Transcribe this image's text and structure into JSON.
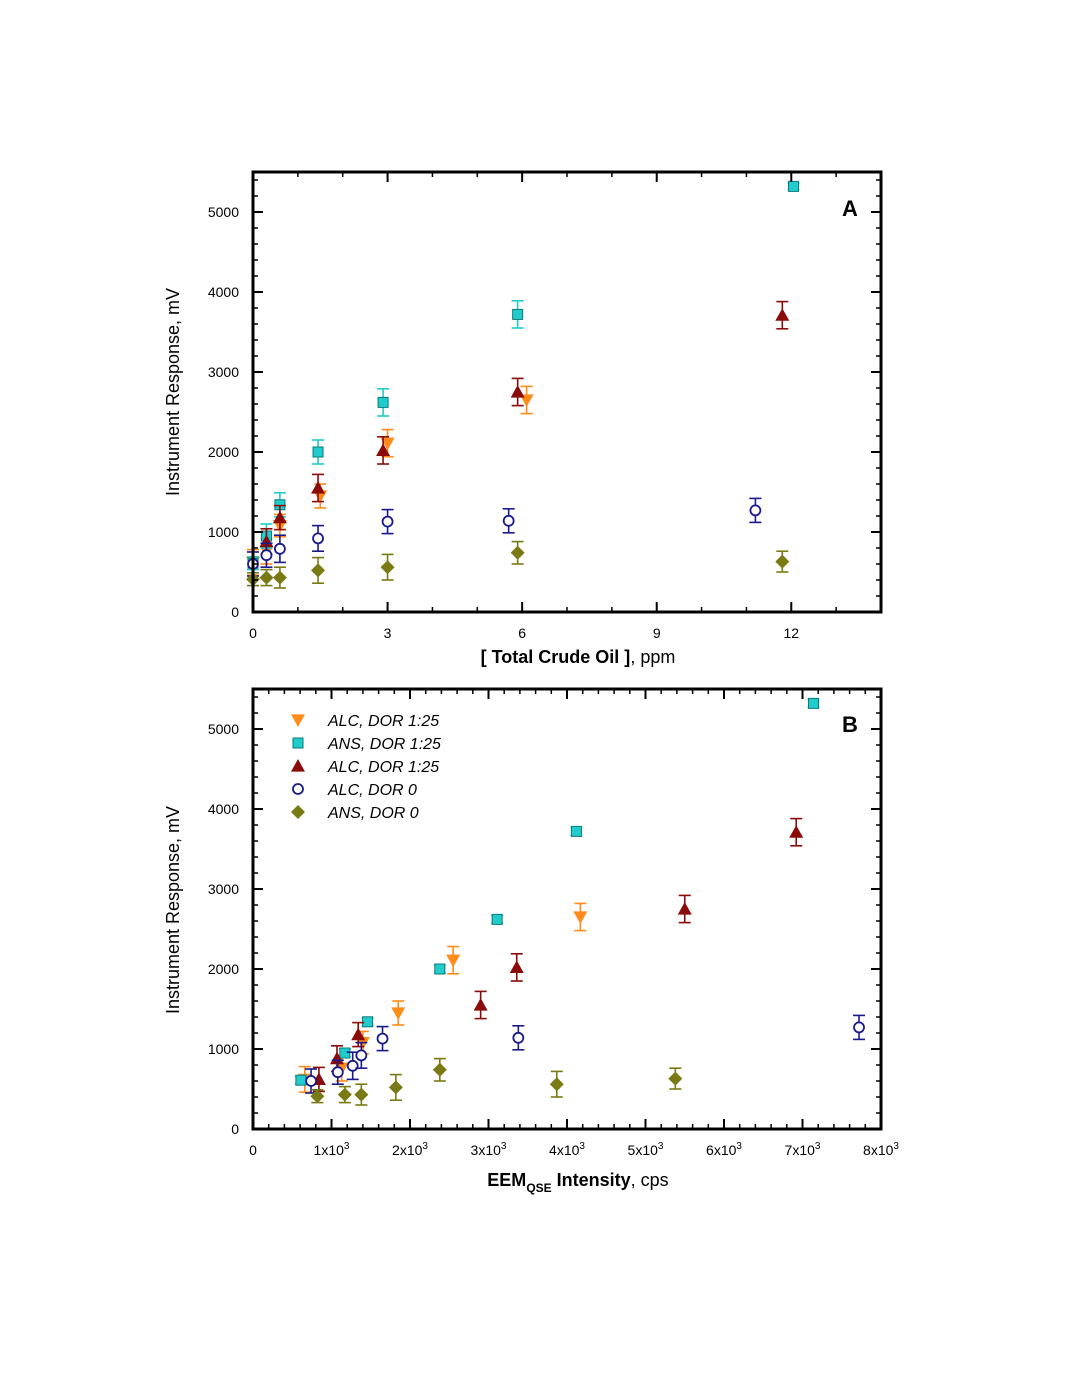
{
  "chart_data": [
    {
      "type": "scatter",
      "panel_label": "A",
      "xlabel_bold": "[ Total Crude Oil ]",
      "xlabel_rest": ", ppm",
      "ylabel": "Instrument Response, mV",
      "xlim": [
        0,
        14
      ],
      "ylim": [
        0,
        5500
      ],
      "x_ticks": [
        0,
        3,
        6,
        9,
        12
      ],
      "x_tick_labels": [
        "0",
        "3",
        "6",
        "9",
        "12"
      ],
      "y_ticks": [
        0,
        1000,
        2000,
        3000,
        4000,
        5000
      ],
      "y_tick_labels": [
        "0",
        "1000",
        "2000",
        "3000",
        "4000",
        "5000"
      ],
      "grid": false,
      "series": [
        {
          "marker": "triangle-down",
          "color": "#FF8C1A",
          "points": [
            {
              "x": 0,
              "y": 620,
              "err": 160
            },
            {
              "x": 0.3,
              "y": 760,
              "err": 160
            },
            {
              "x": 0.6,
              "y": 1080,
              "err": 140
            },
            {
              "x": 1.5,
              "y": 1450,
              "err": 150
            },
            {
              "x": 3,
              "y": 2110,
              "err": 170
            },
            {
              "x": 6.1,
              "y": 2650,
              "err": 170
            }
          ]
        },
        {
          "marker": "square",
          "color": "#22CCCC",
          "points": [
            {
              "x": 0,
              "y": 610,
              "err": 80
            },
            {
              "x": 0.3,
              "y": 950,
              "err": 150
            },
            {
              "x": 0.6,
              "y": 1340,
              "err": 150
            },
            {
              "x": 1.45,
              "y": 2000,
              "err": 150
            },
            {
              "x": 2.9,
              "y": 2620,
              "err": 170
            },
            {
              "x": 5.9,
              "y": 3720,
              "err": 170
            },
            {
              "x": 12.05,
              "y": 5320,
              "err": 40
            }
          ]
        },
        {
          "marker": "triangle-up",
          "color": "#8B0A0A",
          "points": [
            {
              "x": 0.3,
              "y": 880,
              "err": 160
            },
            {
              "x": 0.6,
              "y": 1180,
              "err": 150
            },
            {
              "x": 1.45,
              "y": 1550,
              "err": 170
            },
            {
              "x": 2.9,
              "y": 2020,
              "err": 170
            },
            {
              "x": 5.9,
              "y": 2750,
              "err": 170
            },
            {
              "x": 11.8,
              "y": 3710,
              "err": 170
            }
          ]
        },
        {
          "marker": "circle-open",
          "color": "#1A1A8C",
          "points": [
            {
              "x": 0,
              "y": 600,
              "err": 150
            },
            {
              "x": 0.3,
              "y": 710,
              "err": 150
            },
            {
              "x": 0.6,
              "y": 790,
              "err": 170
            },
            {
              "x": 1.45,
              "y": 920,
              "err": 160
            },
            {
              "x": 3,
              "y": 1130,
              "err": 150
            },
            {
              "x": 5.7,
              "y": 1140,
              "err": 150
            },
            {
              "x": 11.2,
              "y": 1270,
              "err": 150
            }
          ]
        },
        {
          "marker": "diamond",
          "color": "#7A7A14",
          "points": [
            {
              "x": 0,
              "y": 410,
              "err": 80
            },
            {
              "x": 0.3,
              "y": 430,
              "err": 100
            },
            {
              "x": 0.6,
              "y": 430,
              "err": 130
            },
            {
              "x": 1.45,
              "y": 520,
              "err": 160
            },
            {
              "x": 3,
              "y": 560,
              "err": 160
            },
            {
              "x": 5.9,
              "y": 740,
              "err": 140
            },
            {
              "x": 11.8,
              "y": 630,
              "err": 130
            }
          ]
        }
      ]
    },
    {
      "type": "scatter",
      "panel_label": "B",
      "xlabel_main": "EEM",
      "xlabel_sub": "QSE",
      "xlabel_main2": " Intensity",
      "xlabel_rest": ", cps",
      "ylabel": "Instrument Response, mV",
      "xlim": [
        0,
        8000
      ],
      "ylim": [
        0,
        5500
      ],
      "x_ticks": [
        0,
        1000,
        2000,
        3000,
        4000,
        5000,
        6000,
        7000,
        8000
      ],
      "x_tick_labels": [
        {
          "base": "0",
          "exp": ""
        },
        {
          "base": "1x10",
          "exp": "3"
        },
        {
          "base": "2x10",
          "exp": "3"
        },
        {
          "base": "3x10",
          "exp": "3"
        },
        {
          "base": "4x10",
          "exp": "3"
        },
        {
          "base": "5x10",
          "exp": "3"
        },
        {
          "base": "6x10",
          "exp": "3"
        },
        {
          "base": "7x10",
          "exp": "3"
        },
        {
          "base": "8x10",
          "exp": "3"
        }
      ],
      "y_ticks": [
        0,
        1000,
        2000,
        3000,
        4000,
        5000
      ],
      "y_tick_labels": [
        "0",
        "1000",
        "2000",
        "3000",
        "4000",
        "5000"
      ],
      "grid": false,
      "legend": {
        "placement": "top-left",
        "entries": [
          {
            "label": "ALC, DOR 1:25",
            "marker": "triangle-down",
            "color": "#FF8C1A"
          },
          {
            "label": "ANS, DOR 1:25",
            "marker": "square",
            "color": "#22CCCC"
          },
          {
            "label": "ALC, DOR 1:25",
            "marker": "triangle-up",
            "color": "#8B0A0A"
          },
          {
            "label": "ALC, DOR 0",
            "marker": "circle-open",
            "color": "#1A1A8C"
          },
          {
            "label": "ANS, DOR 0",
            "marker": "diamond",
            "color": "#7A7A14"
          }
        ]
      },
      "series": [
        {
          "name": "ALC, DOR 1:25",
          "marker": "triangle-down",
          "color": "#FF8C1A",
          "points": [
            {
              "x": 660,
              "y": 620,
              "err": 160
            },
            {
              "x": 1130,
              "y": 760,
              "err": 160
            },
            {
              "x": 1400,
              "y": 1080,
              "err": 140
            },
            {
              "x": 1850,
              "y": 1450,
              "err": 150
            },
            {
              "x": 2550,
              "y": 2110,
              "err": 170
            },
            {
              "x": 4170,
              "y": 2650,
              "err": 170
            }
          ]
        },
        {
          "name": "ANS, DOR 1:25",
          "marker": "square",
          "color": "#22CCCC",
          "points": [
            {
              "x": 610,
              "y": 610,
              "err": 50
            },
            {
              "x": 1170,
              "y": 950,
              "err": 50
            },
            {
              "x": 1460,
              "y": 1340,
              "err": 50
            },
            {
              "x": 2380,
              "y": 2000,
              "err": 50
            },
            {
              "x": 3110,
              "y": 2620,
              "err": 50
            },
            {
              "x": 4120,
              "y": 3720,
              "err": 50
            },
            {
              "x": 7140,
              "y": 5320,
              "err": 50
            }
          ]
        },
        {
          "name": "ALC, DOR 1:25",
          "marker": "triangle-up",
          "color": "#8B0A0A",
          "points": [
            {
              "x": 840,
              "y": 620,
              "err": 150
            },
            {
              "x": 1070,
              "y": 880,
              "err": 160
            },
            {
              "x": 1340,
              "y": 1180,
              "err": 150
            },
            {
              "x": 2900,
              "y": 1550,
              "err": 170
            },
            {
              "x": 3360,
              "y": 2020,
              "err": 170
            },
            {
              "x": 5500,
              "y": 2750,
              "err": 170
            },
            {
              "x": 6920,
              "y": 3710,
              "err": 170
            }
          ]
        },
        {
          "name": "ALC, DOR 0",
          "marker": "circle-open",
          "color": "#1A1A8C",
          "points": [
            {
              "x": 740,
              "y": 600,
              "err": 150
            },
            {
              "x": 1080,
              "y": 710,
              "err": 150
            },
            {
              "x": 1270,
              "y": 790,
              "err": 170
            },
            {
              "x": 1380,
              "y": 920,
              "err": 160
            },
            {
              "x": 1650,
              "y": 1130,
              "err": 150
            },
            {
              "x": 3380,
              "y": 1140,
              "err": 150
            },
            {
              "x": 7720,
              "y": 1270,
              "err": 150
            }
          ]
        },
        {
          "name": "ANS, DOR 0",
          "marker": "diamond",
          "color": "#7A7A14",
          "points": [
            {
              "x": 820,
              "y": 410,
              "err": 80
            },
            {
              "x": 1170,
              "y": 430,
              "err": 100
            },
            {
              "x": 1380,
              "y": 430,
              "err": 130
            },
            {
              "x": 1820,
              "y": 520,
              "err": 160
            },
            {
              "x": 2380,
              "y": 740,
              "err": 140
            },
            {
              "x": 3870,
              "y": 560,
              "err": 160
            },
            {
              "x": 5380,
              "y": 630,
              "err": 130
            }
          ]
        }
      ]
    }
  ]
}
